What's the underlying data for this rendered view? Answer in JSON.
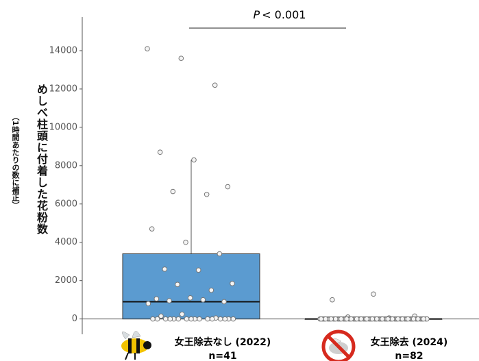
{
  "chart_data": {
    "type": "box",
    "y_label": "めしべ柱頭に付着した花粉数",
    "y_sublabel": "（1時間あたりの数に補正）",
    "annotation": {
      "italic": "P",
      "text": "< 0.001"
    },
    "ylim": [
      -800,
      15750
    ],
    "yticks": [
      0,
      2000,
      4000,
      6000,
      8000,
      10000,
      12000,
      14000
    ],
    "groups": [
      {
        "name": "女王除去なし (2022)",
        "n_label": "n=41",
        "color": "#5b9bd0",
        "whisker_low": 0,
        "q1": 0,
        "median": 900,
        "q3": 3400,
        "whisker_high": 8300,
        "values": [
          14100,
          13600,
          12200,
          8700,
          8300,
          6900,
          6650,
          6500,
          4700,
          4000,
          3400,
          2600,
          2550,
          1850,
          1800,
          1500,
          1050,
          1100,
          900,
          950,
          1000,
          800,
          250,
          50,
          150,
          0,
          0,
          0,
          0,
          0,
          0,
          0,
          0,
          0,
          0,
          0,
          0,
          0,
          0,
          0,
          0
        ]
      },
      {
        "name": "女王除去 (2024)",
        "n_label": "n=82",
        "color": "#5b9bd0",
        "whisker_low": 0,
        "q1": 0,
        "median": 0,
        "q3": 0,
        "whisker_high": 0,
        "values": [
          1000,
          1300,
          150,
          100,
          50,
          0,
          0,
          0,
          0,
          0,
          0,
          0,
          0,
          0,
          0,
          0,
          0,
          0,
          0,
          0,
          0,
          0,
          0,
          0,
          0,
          0,
          0,
          0,
          0,
          0,
          0,
          0,
          0,
          0,
          0,
          0,
          0,
          0,
          0,
          0,
          0,
          0,
          0,
          0,
          0,
          0,
          0,
          0,
          0,
          0,
          0,
          0,
          0,
          0,
          0,
          0,
          0,
          0,
          0,
          0,
          0,
          0,
          0,
          0,
          0,
          0,
          0,
          0,
          0,
          0,
          0,
          0,
          0,
          0,
          0,
          0,
          0,
          0,
          0,
          0,
          0,
          0
        ]
      }
    ]
  }
}
